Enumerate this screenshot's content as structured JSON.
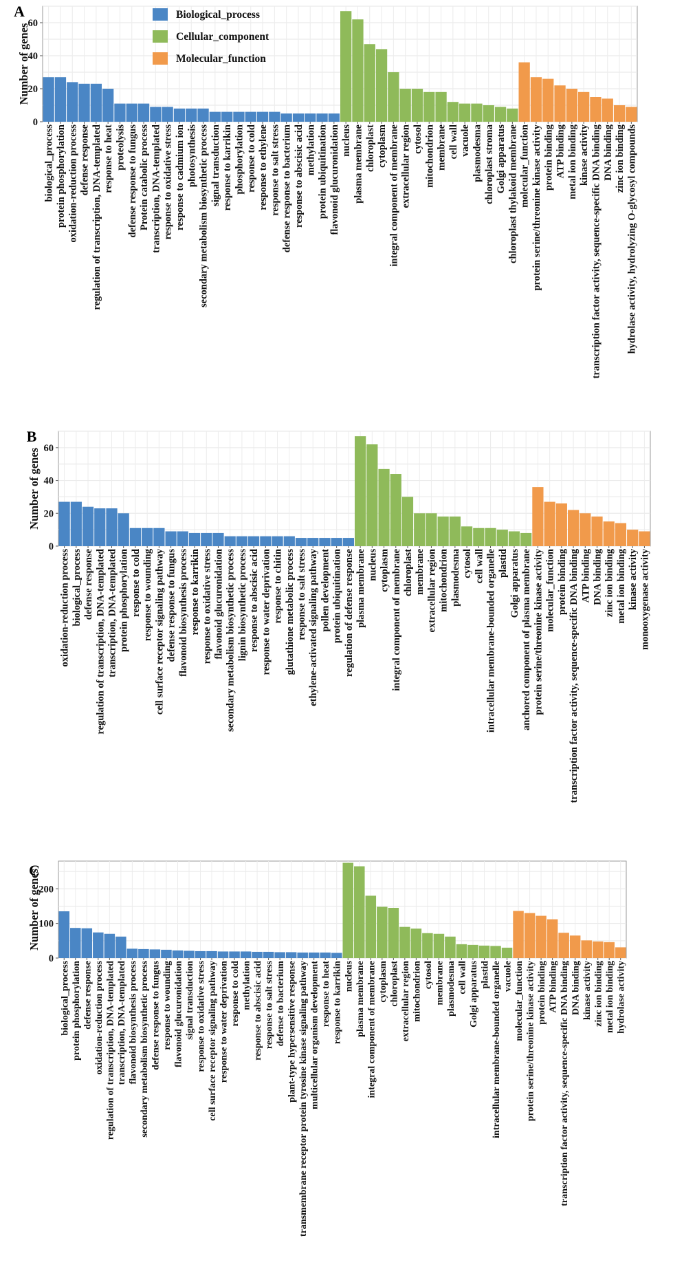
{
  "legend": {
    "placement": "top-center",
    "entries": [
      {
        "name": "Biological_process",
        "color": "#4a86c5"
      },
      {
        "name": "Cellular_component",
        "color": "#8fba5a"
      },
      {
        "name": "Molecular_function",
        "color": "#f19a4b"
      }
    ]
  },
  "chart_data": [
    {
      "panel": "A",
      "type": "bar",
      "ylabel": "Number of genes",
      "ylim": [
        0,
        70
      ],
      "yticks": [
        0,
        20,
        40,
        60
      ],
      "grid": true,
      "groups": [
        {
          "name": "Biological_process",
          "color": "#4a86c5",
          "categories": [
            "biological_process",
            "protein phosphorylation",
            "oxidation-reduction process",
            "defense response",
            "regulation of transcription, DNA-templated",
            "response to heat",
            "proteolysis",
            "defense response to fungus",
            "Protein catabolic process",
            "transcription, DNA-templated",
            "response to oxidative stress",
            "response to cadmium ion",
            "photosynthesis",
            "secondary metabolism biosynthetic process",
            "signal transduction",
            "response to karrikin",
            "phosphorylation",
            "response to cold",
            "response to ethylene",
            "response to salt stress",
            "defense response to bacterium",
            "response to abscisic acid",
            "methylation",
            "protein ubiquitination",
            "flavonoid glucuronidation"
          ],
          "values": [
            27,
            27,
            24,
            23,
            23,
            20,
            11,
            11,
            11,
            9,
            9,
            8,
            8,
            8,
            6,
            6,
            6,
            6,
            6,
            6,
            5,
            5,
            5,
            5,
            5
          ]
        },
        {
          "name": "Cellular_component",
          "color": "#8fba5a",
          "categories": [
            "nucleus",
            "plasma membrane",
            "chloroplast",
            "cytoplasm",
            "integral component of membrane",
            "extracellular region",
            "cytosol",
            "mitochondrion",
            "membrane",
            "cell wall",
            "vacuole",
            "plasmodesma",
            "chloroplast stroma",
            "Golgi apparatus",
            "chloroplast thylakoid membrane"
          ],
          "values": [
            67,
            62,
            47,
            44,
            30,
            20,
            20,
            18,
            18,
            12,
            11,
            11,
            10,
            9,
            8
          ]
        },
        {
          "name": "Molecular_function",
          "color": "#f19a4b",
          "categories": [
            "molecular_function",
            "protein serine/threonine kinase activity",
            "protein binding",
            "ATP binding",
            "metal ion binding",
            "kinase activity",
            "transcription factor activity, sequence-specific DNA binding",
            "DNA binding",
            "zinc ion binding",
            "hydrolase activity, hydrolyzing O-glycosyl compounds"
          ],
          "values": [
            36,
            27,
            26,
            22,
            20,
            18,
            15,
            14,
            10,
            9
          ]
        }
      ]
    },
    {
      "panel": "B",
      "type": "bar",
      "ylabel": "Number of genes",
      "ylim": [
        0,
        70
      ],
      "yticks": [
        0,
        20,
        40,
        60
      ],
      "grid": true,
      "groups": [
        {
          "name": "Biological_process",
          "color": "#4a86c5",
          "categories": [
            "oxidation-reduction process",
            "biological_process",
            "defense response",
            "regulation of transcription, DNA-templated",
            "transcription, DNA-templated",
            "protein phosphorylation",
            "response to cold",
            "response to wounding",
            "cell surface receptor signaling pathway",
            "defense response to fungus",
            "flavonoid biosynthesis process",
            "response to karrikin",
            "response to oxidative stress",
            "flavonoid glucuronidation",
            "secondary metabolism biosynthetic process",
            "lignin biosynthetic process",
            "response to abscisic acid",
            "response to water deprivation",
            "response to chitin",
            "glutathione metabolic process",
            "response to salt stress",
            "ethylene-activated signaling pathway",
            "pollen development",
            "protein ubiquitination",
            "regulation of defense response"
          ],
          "values": [
            27,
            27,
            24,
            23,
            23,
            20,
            11,
            11,
            11,
            9,
            9,
            8,
            8,
            8,
            6,
            6,
            6,
            6,
            6,
            6,
            5,
            5,
            5,
            5,
            5
          ]
        },
        {
          "name": "Cellular_component",
          "color": "#8fba5a",
          "categories": [
            "plasma membrane",
            "nucleus",
            "cytoplasm",
            "integral component of membrane",
            "chloroplast",
            "membrane",
            "extracellular region",
            "mitochondrion",
            "plasmodesma",
            "cytosol",
            "cell wall",
            "intracellular membrane-bounded organelle",
            "plastid",
            "Golgi apparatus",
            "anchored component of plasma membrane"
          ],
          "values": [
            67,
            62,
            47,
            44,
            30,
            20,
            20,
            18,
            18,
            12,
            11,
            11,
            10,
            9,
            8
          ]
        },
        {
          "name": "Molecular_function",
          "color": "#f19a4b",
          "categories": [
            "protein serine/threonine kinase activity",
            "molecular_function",
            "protein binding",
            "transcription factor activity, sequence-specific DNA binding",
            "ATP binding",
            "DNA binding",
            "zinc ion binding",
            "metal ion binding",
            "kinase activity",
            "monooxygenase activity"
          ],
          "values": [
            36,
            27,
            26,
            22,
            20,
            18,
            15,
            14,
            10,
            9
          ]
        }
      ]
    },
    {
      "panel": "C",
      "type": "bar",
      "ylabel": "Number of genes",
      "ylim": [
        0,
        280
      ],
      "yticks": [
        0,
        100,
        200
      ],
      "grid": true,
      "groups": [
        {
          "name": "Biological_process",
          "color": "#4a86c5",
          "categories": [
            "biological_process",
            "protein phosphorylation",
            "defense response",
            "oxidation-reduction process",
            "regulation of transcription, DNA-templated",
            "transcription, DNA-templated",
            "flavonoid biosynthesis process",
            "secondary metabolism biosynthetic process",
            "defense response to fungus",
            "response to wounding",
            "flavonoid glucuronidation",
            "signal transduction",
            "response to oxidative stress",
            "cell surface receptor signaling pathway",
            "response to water deprivation",
            "response to cold",
            "methylation",
            "response to abscisic acid",
            "response to salt stress",
            "defense to bacterium",
            "plant-type hypersensitive response",
            "transmembrane receptor protein tyrosine kinase signaling pathway",
            "multicellular organism development",
            "response to heat",
            "response to karrikin"
          ],
          "values": [
            135,
            87,
            86,
            74,
            70,
            62,
            27,
            26,
            25,
            24,
            22,
            21,
            20,
            20,
            19,
            19,
            19,
            18,
            18,
            17,
            17,
            16,
            16,
            16,
            15
          ]
        },
        {
          "name": "Cellular_component",
          "color": "#8fba5a",
          "categories": [
            "nucleus",
            "plasma membrane",
            "integral component of membrane",
            "cytoplasm",
            "chloroplast",
            "extracellular region",
            "mitochondrion",
            "cytosol",
            "membrane",
            "plasmodesma",
            "cell wall",
            "Golgi apparatus",
            "plastid",
            "intracellular membrane-bounded organelle",
            "vacuole"
          ],
          "values": [
            275,
            265,
            180,
            148,
            145,
            90,
            85,
            72,
            70,
            62,
            40,
            38,
            36,
            35,
            30
          ]
        },
        {
          "name": "Molecular_function",
          "color": "#f19a4b",
          "categories": [
            "molecular_function",
            "protein serine/threonine kinase activity",
            "protein binding",
            "ATP binding",
            "transcription factor activity, sequence-specific DNA binding",
            "DNA binding",
            "kinase activity",
            "zinc ion binding",
            "metal ion binding",
            "hydrolase activity"
          ],
          "values": [
            136,
            130,
            122,
            112,
            73,
            65,
            51,
            48,
            46,
            31
          ]
        }
      ]
    }
  ]
}
